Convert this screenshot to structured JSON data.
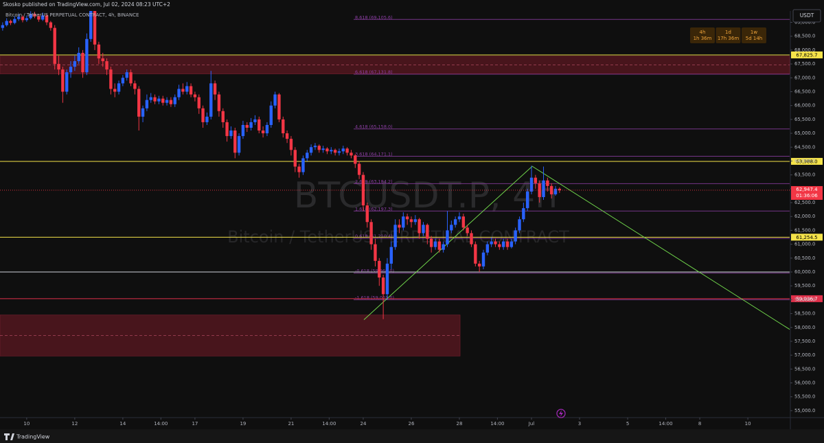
{
  "chart_data": {
    "type": "candlestick",
    "publisher": "Skosko published on TradingView.com, Jul 02, 2024 08:23 UTC+2",
    "title": "Bitcoin / TetherUS PERPETUAL CONTRACT, 4h, BINANCE",
    "watermark": "BTCUSDT.P, 4h",
    "watermark_sub": "Bitcoin / TetherUS PERPETUAL CONTRACT",
    "currency": "USDT",
    "brand": "TradingView",
    "up_color": "#2962ff",
    "down_color": "#f23645",
    "x": [
      9,
      9.167,
      9.333,
      9.5,
      9.667,
      9.833,
      10,
      10.167,
      10.333,
      10.5,
      10.667,
      10.833,
      11,
      11.167,
      11.333,
      11.5,
      11.667,
      11.833,
      12,
      12.167,
      12.333,
      12.5,
      12.667,
      12.833,
      13,
      13.167,
      13.333,
      13.5,
      13.667,
      13.833,
      14,
      14.167,
      14.333,
      14.5,
      14.667,
      14.833,
      15,
      15.167,
      15.333,
      15.5,
      15.667,
      15.833,
      16,
      16.167,
      16.333,
      16.5,
      16.667,
      16.833,
      17,
      17.167,
      17.333,
      17.5,
      17.667,
      17.833,
      18,
      18.167,
      18.333,
      18.5,
      18.667,
      18.833,
      19,
      19.167,
      19.333,
      19.5,
      19.667,
      19.833,
      20,
      20.167,
      20.333,
      20.5,
      20.667,
      20.833,
      21,
      21.167,
      21.333,
      21.5,
      21.667,
      21.833,
      22,
      22.167,
      22.333,
      22.5,
      22.667,
      22.833,
      23,
      23.167,
      23.333,
      23.5,
      23.667,
      23.833,
      24,
      24.167,
      24.333,
      24.5,
      24.667,
      24.833,
      25,
      25.167,
      25.333,
      25.5,
      25.667,
      25.833,
      26,
      26.167,
      26.333,
      26.5,
      26.667,
      26.833,
      27,
      27.167,
      27.333,
      27.5,
      27.667,
      27.833,
      28,
      28.167,
      28.333,
      28.5,
      28.667,
      28.833,
      29,
      29.167,
      29.333,
      29.5,
      29.667,
      29.833,
      30,
      30.167,
      30.333,
      30.5,
      30.667,
      30.833,
      31,
      31.167,
      31.333,
      31.5,
      31.667,
      31.833,
      32,
      32.167
    ],
    "open": [
      68800,
      68900,
      69050,
      68980,
      69120,
      69200,
      69080,
      69150,
      69300,
      69220,
      69100,
      69250,
      69000,
      68800,
      67500,
      67300,
      66500,
      67200,
      67400,
      67600,
      67900,
      67200,
      68400,
      69500,
      68200,
      67700,
      67600,
      67300,
      66600,
      66500,
      66800,
      67000,
      67200,
      66800,
      66600,
      65600,
      65900,
      66200,
      66300,
      66150,
      66250,
      66100,
      66200,
      66050,
      66300,
      66600,
      66500,
      66700,
      66400,
      66300,
      65900,
      65400,
      65600,
      66800,
      66400,
      65800,
      65400,
      64900,
      65100,
      64300,
      64900,
      65300,
      65200,
      65400,
      65500,
      65100,
      65000,
      65300,
      66000,
      66400,
      65500,
      65000,
      64800,
      64400,
      63800,
      63600,
      64100,
      64300,
      64500,
      64550,
      64400,
      64450,
      64350,
      64400,
      64300,
      64350,
      64450,
      64300,
      64200,
      63900,
      63500,
      62400,
      61800,
      61000,
      60400,
      59800,
      59200,
      60300,
      60900,
      61700,
      61600,
      62000,
      61900,
      61800,
      61900,
      61400,
      61700,
      61200,
      60900,
      61100,
      60800,
      61000,
      61500,
      61700,
      61900,
      62000,
      61600,
      61400,
      61000,
      60300,
      60200,
      60700,
      61000,
      61100,
      61000,
      60900,
      61100,
      60900,
      61100,
      61500,
      61900,
      62300,
      62900,
      63400,
      63200,
      62700,
      63300,
      63100,
      62800,
      63000
    ],
    "high": [
      69000,
      69150,
      69100,
      69220,
      69300,
      69250,
      69250,
      69400,
      69380,
      69300,
      69350,
      69300,
      69050,
      68900,
      67800,
      67400,
      67300,
      67600,
      67800,
      68100,
      68000,
      68600,
      69700,
      69600,
      68300,
      67900,
      67700,
      67400,
      66800,
      66900,
      67100,
      67300,
      67300,
      66900,
      66700,
      66000,
      66400,
      66450,
      66400,
      66350,
      66350,
      66300,
      66300,
      66400,
      66750,
      66800,
      66850,
      66800,
      66500,
      66400,
      66000,
      65750,
      67250,
      66900,
      66500,
      65900,
      65500,
      65250,
      65200,
      65000,
      65450,
      65400,
      65550,
      65650,
      65600,
      65250,
      65400,
      66150,
      66500,
      66450,
      65600,
      65100,
      64900,
      64500,
      63900,
      64200,
      64400,
      64600,
      64650,
      64600,
      64550,
      64500,
      64500,
      64450,
      64450,
      64550,
      64500,
      64400,
      64250,
      64000,
      63600,
      62500,
      61900,
      61200,
      60500,
      59900,
      60500,
      61100,
      61900,
      61900,
      62150,
      62100,
      62000,
      62050,
      61950,
      61800,
      61750,
      61300,
      61200,
      61200,
      61100,
      62200,
      61850,
      62000,
      62150,
      62100,
      61700,
      61500,
      61100,
      60400,
      60800,
      61100,
      61250,
      61200,
      61100,
      61200,
      61200,
      61200,
      61600,
      62000,
      62500,
      63000,
      63830,
      63500,
      63300,
      63800,
      63400,
      63200,
      63100,
      63050
    ],
    "low": [
      68700,
      68850,
      68900,
      68930,
      69050,
      69000,
      69020,
      69100,
      69150,
      69020,
      69050,
      68900,
      68700,
      67300,
      67100,
      66100,
      66400,
      67000,
      67250,
      67500,
      67000,
      67100,
      68300,
      68000,
      67500,
      67400,
      67100,
      66400,
      66300,
      66400,
      66700,
      66900,
      66700,
      66400,
      65100,
      65400,
      65800,
      66100,
      66050,
      66050,
      66000,
      66000,
      65950,
      65950,
      66200,
      66400,
      66400,
      66300,
      66150,
      65700,
      65200,
      65300,
      65500,
      66200,
      65600,
      65200,
      64700,
      64800,
      64100,
      64200,
      64800,
      65050,
      65100,
      65300,
      65000,
      64850,
      64900,
      65200,
      65900,
      65400,
      64850,
      64650,
      64200,
      63600,
      63400,
      63500,
      64000,
      64200,
      64400,
      64300,
      64300,
      64250,
      64250,
      64200,
      64200,
      64250,
      64200,
      64100,
      63750,
      63350,
      62200,
      61600,
      60800,
      60200,
      59500,
      58300,
      59000,
      60100,
      60800,
      61400,
      61500,
      61700,
      61600,
      61700,
      61200,
      61300,
      61000,
      60700,
      60800,
      60700,
      60700,
      60900,
      61400,
      61600,
      61800,
      61500,
      61300,
      60900,
      60200,
      60000,
      60100,
      60600,
      60900,
      60900,
      60800,
      60800,
      60800,
      60850,
      61000,
      61400,
      61800,
      62200,
      62800,
      63000,
      62500,
      62600,
      62900,
      62650,
      62750,
      62850
    ],
    "close": [
      68900,
      69050,
      68980,
      69120,
      69200,
      69080,
      69150,
      69300,
      69220,
      69100,
      69250,
      69000,
      68800,
      67500,
      67300,
      66500,
      67200,
      67400,
      67600,
      67900,
      67200,
      68400,
      69500,
      68200,
      67700,
      67600,
      67300,
      66600,
      66500,
      66800,
      67000,
      67200,
      66800,
      66600,
      65600,
      65900,
      66200,
      66300,
      66150,
      66250,
      66100,
      66200,
      66050,
      66300,
      66600,
      66500,
      66700,
      66400,
      66300,
      65900,
      65400,
      65600,
      66800,
      66400,
      65800,
      65400,
      64900,
      65100,
      64300,
      64900,
      65300,
      65200,
      65400,
      65500,
      65100,
      65000,
      65300,
      66000,
      66400,
      65500,
      65000,
      64800,
      64400,
      63800,
      63600,
      64100,
      64300,
      64500,
      64550,
      64400,
      64450,
      64350,
      64400,
      64300,
      64350,
      64450,
      64300,
      64200,
      63900,
      63500,
      62400,
      61800,
      61000,
      60400,
      59800,
      59200,
      60300,
      60900,
      61700,
      61600,
      62000,
      61900,
      61800,
      61900,
      61400,
      61700,
      61200,
      60900,
      61100,
      60800,
      61000,
      61500,
      61700,
      61900,
      62000,
      61600,
      61400,
      61000,
      60300,
      60200,
      60700,
      61000,
      61100,
      61000,
      60900,
      61100,
      60900,
      61100,
      61500,
      61900,
      62300,
      62900,
      63400,
      63200,
      62700,
      63300,
      63100,
      62800,
      63000,
      62947.4
    ],
    "xlim": [
      8.89,
      41.74
    ],
    "xticks": [
      10,
      12,
      14,
      {
        "value": 15.583,
        "label": "14:00"
      },
      17,
      19,
      21,
      {
        "value": 22.583,
        "label": "14:00"
      },
      24,
      26,
      28,
      {
        "value": 29.583,
        "label": "14:00"
      },
      {
        "value": 31,
        "label": "Jul"
      },
      {
        "value": 33,
        "label": "3"
      },
      {
        "value": 35,
        "label": "5"
      },
      {
        "value": 36.583,
        "label": "14:00"
      },
      {
        "value": 38,
        "label": "8"
      },
      {
        "value": 40,
        "label": "10"
      }
    ],
    "ylim": [
      54750,
      69360
    ],
    "yticks": [
      {
        "value": 55000,
        "label": "55,000.0"
      },
      {
        "value": 55500,
        "label": "55,500.0"
      },
      {
        "value": 56000,
        "label": "56,000.0"
      },
      {
        "value": 56500,
        "label": "56,500.0"
      },
      {
        "value": 57000,
        "label": "57,000.0"
      },
      {
        "value": 57500,
        "label": "57,500.0"
      },
      {
        "value": 58000,
        "label": "58,000.0"
      },
      {
        "value": 58500,
        "label": "58,500.0"
      },
      {
        "value": 59000,
        "label": "59,000.0"
      },
      {
        "value": 59500,
        "label": "59,500.0"
      },
      {
        "value": 60000,
        "label": "60,000.0"
      },
      {
        "value": 60500,
        "label": "60,500.0"
      },
      {
        "value": 61000,
        "label": "61,000.0"
      },
      {
        "value": 61500,
        "label": "61,500.0"
      },
      {
        "value": 62000,
        "label": "62,000.0"
      },
      {
        "value": 62500,
        "label": "62,500.0"
      },
      {
        "value": 63000,
        "label": "63,000.0"
      },
      {
        "value": 63500,
        "label": "63,500.0"
      },
      {
        "value": 64000,
        "label": "64,000.0"
      },
      {
        "value": 64500,
        "label": "64,500.0"
      },
      {
        "value": 65000,
        "label": "65,000.0"
      },
      {
        "value": 65500,
        "label": "65,500.0"
      },
      {
        "value": 66000,
        "label": "66,000.0"
      },
      {
        "value": 66500,
        "label": "66,500.0"
      },
      {
        "value": 67000,
        "label": "67,000.0"
      },
      {
        "value": 67500,
        "label": "67,500.0"
      },
      {
        "value": 68000,
        "label": "68,000.0"
      },
      {
        "value": 68500,
        "label": "68,500.0"
      },
      {
        "value": 69000,
        "label": "69,000.0"
      }
    ],
    "levels": [
      {
        "value": 69105.6,
        "label": "8.618 (69,105.6)"
      },
      {
        "value": 67131.8,
        "label": "6.618 (67,131.8)"
      },
      {
        "value": 65158.0,
        "label": "4.618 (65,158.0)"
      },
      {
        "value": 64171.1,
        "label": "3.618 (64,171.1)"
      },
      {
        "value": 63184.2,
        "label": "2.618 (63,184.2)"
      },
      {
        "value": 62197.3,
        "label": "1.618 (62,197.3)"
      },
      {
        "value": 61210.4,
        "label": "0.618 (61,210.4)"
      },
      {
        "value": 59960.0,
        "label": "-0.618 (59,960.0)"
      },
      {
        "value": 59001.0,
        "label": "-1.618 (59,001.0)"
      }
    ],
    "level_color": "#8e3fa6",
    "price_lines": [
      {
        "value": 67825.7,
        "label": "67,825.7",
        "color": "#f5e34a"
      },
      {
        "value": 63988.0,
        "label": "63,988.0",
        "color": "#f5e34a"
      },
      {
        "value": 61254.5,
        "label": "61,254.5",
        "color": "#f5e34a"
      },
      {
        "value": 60000,
        "color": "#d1d4dc"
      },
      {
        "value": 59036.7,
        "label": "59,036.7",
        "color": "#e0304a"
      }
    ],
    "last_price": {
      "value": 62947.4,
      "label": "62,947.4",
      "countdown": "01:36:06",
      "color": "#f23645"
    },
    "zones": [
      {
        "x": [
          8.89,
          41.74
        ],
        "y": [
          67142,
          67784
        ]
      },
      {
        "x": [
          8.89,
          28.03
        ],
        "y": [
          56970,
          58450
        ]
      }
    ],
    "zone_color": "#5c1822",
    "trendline": {
      "x": [
        24.03,
        31.03,
        41.74
      ],
      "y": [
        58280,
        63810,
        57930
      ],
      "color": "#6fd34a"
    },
    "timeframes": [
      {
        "interval": "4h",
        "remaining": "1h 36m"
      },
      {
        "interval": "1d",
        "remaining": "17h 36m"
      },
      {
        "interval": "1w",
        "remaining": "5d 14h"
      }
    ]
  }
}
